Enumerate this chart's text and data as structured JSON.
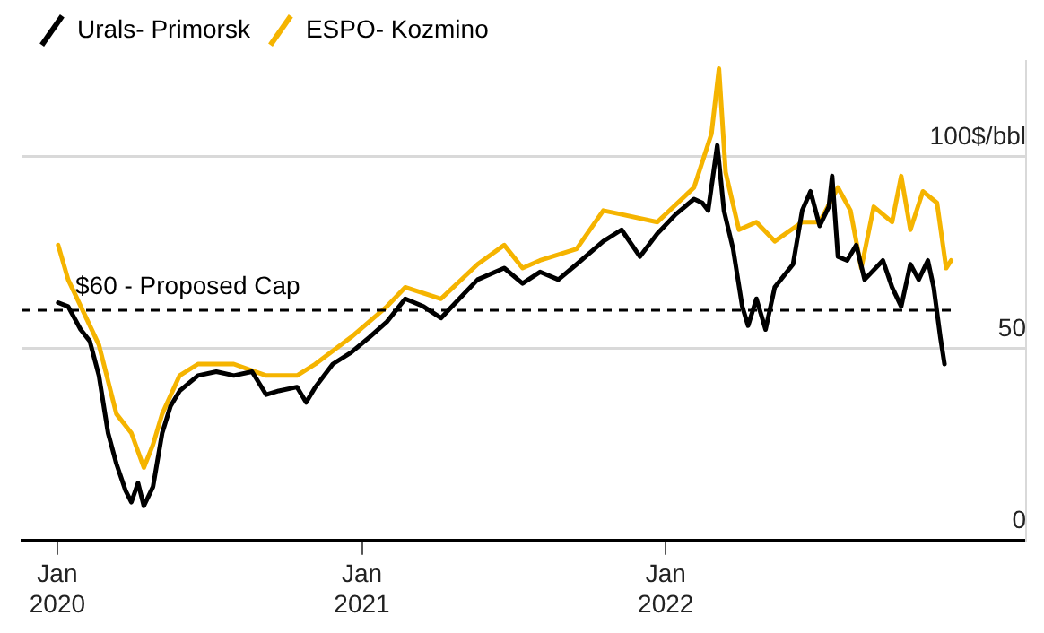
{
  "chart_data": {
    "type": "line",
    "legend": "top left",
    "grid": "y",
    "marker": "none",
    "line_style": "solid",
    "xlim": [
      "2019-11-19",
      "2023-03-10"
    ],
    "xticks": [
      {
        "value": "2020-01-01",
        "label": "Jan 2020"
      },
      {
        "value": "2021-01-01",
        "label": "Jan 2021"
      },
      {
        "value": "2022-01-01",
        "label": "Jan 2022"
      }
    ],
    "ylim": [
      0,
      125
    ],
    "yticks": [
      0,
      50,
      {
        "value": 100,
        "label": "100$/bbl"
      }
    ],
    "ref_lines": [
      {
        "axis": "y",
        "value": 60,
        "label": "$60 - Proposed Cap",
        "color": "#000000",
        "line_style": "dashed"
      }
    ],
    "series": [
      {
        "name": "Urals- Primorsk",
        "color": "#000000",
        "x": [
          "2020-01-02",
          "2020-01-14",
          "2020-01-29",
          "2020-02-09",
          "2020-02-20",
          "2020-03-02",
          "2020-03-12",
          "2020-03-23",
          "2020-03-30",
          "2020-04-07",
          "2020-04-14",
          "2020-04-25",
          "2020-05-06",
          "2020-05-16",
          "2020-05-27",
          "2020-06-18",
          "2020-07-10",
          "2020-07-31",
          "2020-08-22",
          "2020-09-08",
          "2020-09-23",
          "2020-10-15",
          "2020-10-26",
          "2020-11-06",
          "2020-11-27",
          "2020-12-19",
          "2021-01-10",
          "2021-01-31",
          "2021-02-22",
          "2021-03-16",
          "2021-04-06",
          "2021-04-28",
          "2021-05-20",
          "2021-06-21",
          "2021-07-13",
          "2021-08-03",
          "2021-08-25",
          "2021-09-16",
          "2021-10-18",
          "2021-11-09",
          "2021-12-01",
          "2021-12-22",
          "2022-01-13",
          "2022-02-04",
          "2022-02-14",
          "2022-02-21",
          "2022-03-04",
          "2022-03-12",
          "2022-03-23",
          "2022-04-03",
          "2022-04-10",
          "2022-04-20",
          "2022-05-01",
          "2022-05-12",
          "2022-06-03",
          "2022-06-14",
          "2022-06-24",
          "2022-07-05",
          "2022-07-16",
          "2022-07-20",
          "2022-07-27",
          "2022-08-07",
          "2022-08-18",
          "2022-08-28",
          "2022-09-19",
          "2022-09-30",
          "2022-10-11",
          "2022-10-22",
          "2022-11-01",
          "2022-11-12",
          "2022-11-19",
          "2022-11-27",
          "2022-12-02"
        ],
        "values": [
          62,
          61,
          55,
          52,
          43,
          28,
          20,
          13,
          10,
          15,
          9,
          14,
          28,
          35,
          39,
          43,
          44,
          43,
          44,
          38,
          39,
          40,
          36,
          40,
          46,
          49,
          53,
          57,
          63,
          61,
          58,
          63,
          68,
          71,
          67,
          70,
          68,
          72,
          78,
          81,
          74,
          80,
          85,
          89,
          88,
          86,
          103,
          86,
          76,
          61,
          56,
          63,
          55,
          66,
          72,
          86,
          91,
          82,
          87,
          95,
          74,
          73,
          77,
          68,
          73,
          66,
          61,
          72,
          68,
          73,
          66,
          53,
          46
        ]
      },
      {
        "name": "ESPO- Kozmino",
        "color": "#f5b400",
        "x": [
          "2020-01-02",
          "2020-01-14",
          "2020-02-20",
          "2020-03-12",
          "2020-03-30",
          "2020-04-14",
          "2020-04-25",
          "2020-05-06",
          "2020-05-27",
          "2020-06-18",
          "2020-07-31",
          "2020-09-08",
          "2020-10-15",
          "2020-11-06",
          "2020-12-19",
          "2021-01-31",
          "2021-02-22",
          "2021-04-06",
          "2021-05-20",
          "2021-06-21",
          "2021-07-13",
          "2021-08-03",
          "2021-09-16",
          "2021-10-18",
          "2021-11-09",
          "2021-12-22",
          "2022-02-04",
          "2022-02-25",
          "2022-03-06",
          "2022-03-14",
          "2022-03-30",
          "2022-04-20",
          "2022-05-12",
          "2022-06-14",
          "2022-07-05",
          "2022-07-27",
          "2022-08-11",
          "2022-08-24",
          "2022-09-08",
          "2022-09-30",
          "2022-10-11",
          "2022-10-22",
          "2022-11-06",
          "2022-11-23",
          "2022-12-04",
          "2022-12-10"
        ],
        "values": [
          77,
          68,
          51,
          33,
          28,
          19,
          25,
          33,
          43,
          46,
          46,
          43,
          43,
          46,
          53,
          61,
          66,
          63,
          72,
          77,
          71,
          73,
          76,
          86,
          85,
          83,
          92,
          106,
          123,
          96,
          81,
          83,
          78,
          83,
          83,
          92,
          86,
          71,
          87,
          83,
          95,
          81,
          91,
          88,
          71,
          73
        ]
      }
    ]
  }
}
